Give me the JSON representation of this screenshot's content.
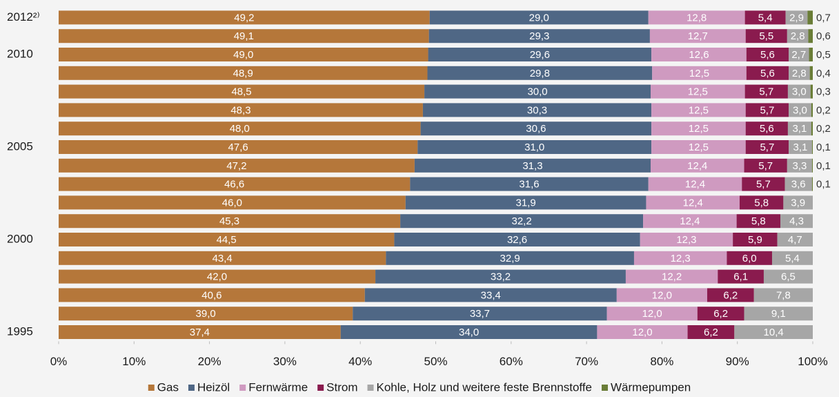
{
  "chart_data": {
    "type": "stacked_barh",
    "categories": [
      "2012²⁾",
      null,
      "2010",
      null,
      null,
      null,
      null,
      "2005",
      null,
      null,
      null,
      null,
      "2000",
      null,
      null,
      null,
      null,
      "1995"
    ],
    "series": [
      {
        "name": "Gas",
        "color": "#b5773a",
        "values": [
          49.2,
          49.1,
          49.0,
          48.9,
          48.5,
          48.3,
          48.0,
          47.6,
          47.2,
          46.6,
          46.0,
          45.3,
          44.5,
          43.4,
          42.0,
          40.6,
          39.0,
          37.4
        ],
        "value_labels": [
          "49,2",
          "49,1",
          "49,0",
          "48,9",
          "48,5",
          "48,3",
          "48,0",
          "47,6",
          "47,2",
          "46,6",
          "46,0",
          "45,3",
          "44,5",
          "43,4",
          "42,0",
          "40,6",
          "39,0",
          "37,4"
        ]
      },
      {
        "name": "Heizöl",
        "color": "#4f6785",
        "values": [
          29.0,
          29.3,
          29.6,
          29.8,
          30.0,
          30.3,
          30.6,
          31.0,
          31.3,
          31.6,
          31.9,
          32.2,
          32.6,
          32.9,
          33.2,
          33.4,
          33.7,
          34.0
        ],
        "value_labels": [
          "29,0",
          "29,3",
          "29,6",
          "29,8",
          "30,0",
          "30,3",
          "30,6",
          "31,0",
          "31,3",
          "31,6",
          "31,9",
          "32,2",
          "32,6",
          "32,9",
          "33,2",
          "33,4",
          "33,7",
          "34,0"
        ]
      },
      {
        "name": "Fernwärme",
        "color": "#cf9ac0",
        "values": [
          12.8,
          12.7,
          12.6,
          12.5,
          12.5,
          12.5,
          12.5,
          12.5,
          12.4,
          12.4,
          12.4,
          12.4,
          12.3,
          12.3,
          12.2,
          12.0,
          12.0,
          12.0
        ],
        "value_labels": [
          "12,8",
          "12,7",
          "12,6",
          "12,5",
          "12,5",
          "12,5",
          "12,5",
          "12,5",
          "12,4",
          "12,4",
          "12,4",
          "12,4",
          "12,3",
          "12,3",
          "12,2",
          "12,0",
          "12,0",
          "12,0"
        ]
      },
      {
        "name": "Strom",
        "color": "#8a1b4e",
        "values": [
          5.4,
          5.5,
          5.6,
          5.6,
          5.7,
          5.7,
          5.6,
          5.7,
          5.7,
          5.7,
          5.8,
          5.8,
          5.9,
          6.0,
          6.1,
          6.2,
          6.2,
          6.2
        ],
        "value_labels": [
          "5,4",
          "5,5",
          "5,6",
          "5,6",
          "5,7",
          "5,7",
          "5,6",
          "5,7",
          "5,7",
          "5,7",
          "5,8",
          "5,8",
          "5,9",
          "6,0",
          "6,1",
          "6,2",
          "6,2",
          "6,2"
        ]
      },
      {
        "name": "Kohle, Holz und weitere feste Brennstoffe",
        "color": "#a6a6a6",
        "values": [
          2.9,
          2.8,
          2.7,
          2.8,
          3.0,
          3.0,
          3.1,
          3.1,
          3.3,
          3.6,
          3.9,
          4.3,
          4.7,
          5.4,
          6.5,
          7.8,
          9.1,
          10.4
        ],
        "value_labels": [
          "2,9",
          "2,8",
          "2,7",
          "2,8",
          "3,0",
          "3,0",
          "3,1",
          "3,1",
          "3,3",
          "3,6",
          "3,9",
          "4,3",
          "4,7",
          "5,4",
          "6,5",
          "7,8",
          "9,1",
          "10,4"
        ]
      },
      {
        "name": "Wärmepumpen",
        "color": "#6a7d37",
        "outside": true,
        "values": [
          0.7,
          0.6,
          0.5,
          0.4,
          0.3,
          0.2,
          0.2,
          0.1,
          0.1,
          0.1,
          null,
          null,
          null,
          null,
          null,
          null,
          null,
          null
        ],
        "value_labels": [
          "0,7",
          "0,6",
          "0,5",
          "0,4",
          "0,3",
          "0,2",
          "0,2",
          "0,1",
          "0,1",
          "0,1",
          null,
          null,
          null,
          null,
          null,
          null,
          null,
          null
        ]
      }
    ],
    "xlim": [
      0,
      100
    ],
    "xticks": [
      {
        "value": 0,
        "label": "0%"
      },
      {
        "value": 10,
        "label": "10%"
      },
      {
        "value": 20,
        "label": "20%"
      },
      {
        "value": 30,
        "label": "30%"
      },
      {
        "value": 40,
        "label": "40%"
      },
      {
        "value": 50,
        "label": "50%"
      },
      {
        "value": 60,
        "label": "60%"
      },
      {
        "value": 70,
        "label": "70%"
      },
      {
        "value": 80,
        "label": "80%"
      },
      {
        "value": 90,
        "label": "90%"
      },
      {
        "value": 100,
        "label": "100%"
      }
    ],
    "grid": false,
    "legend": "bottom"
  }
}
